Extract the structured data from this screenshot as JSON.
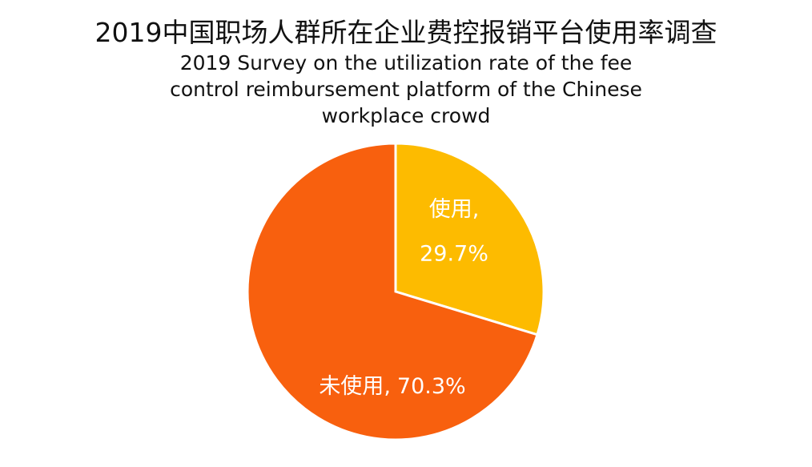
{
  "chart_data": {
    "type": "pie",
    "title": "2019中国职场人群所在企业费控报销平台使用率调查",
    "subtitle": "2019 Survey on the utilization rate of the fee control reimbursement platform of the Chinese workplace crowd",
    "categories": [
      "使用",
      "未使用"
    ],
    "values": [
      29.7,
      70.3
    ],
    "value_labels": [
      "29.7%",
      "70.3%"
    ],
    "separator": ",",
    "colors": [
      "#FDBB00",
      "#F8600E"
    ]
  }
}
